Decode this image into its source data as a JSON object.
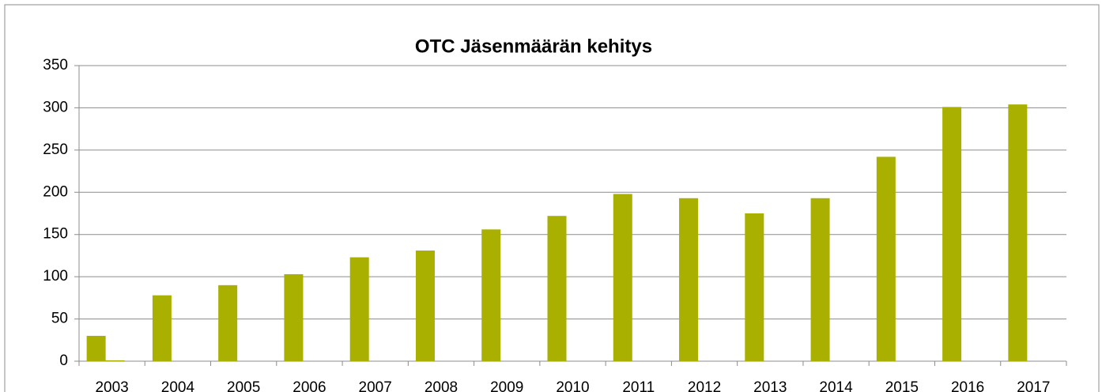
{
  "chart_data": {
    "type": "bar",
    "title": "OTC Jäsenmäärän kehitys",
    "categories": [
      "2003",
      "2004",
      "2005",
      "2006",
      "2007",
      "2008",
      "2009",
      "2010",
      "2011",
      "2012",
      "2013",
      "2014",
      "2015",
      "2016",
      "2017"
    ],
    "series": [
      {
        "color": "#a9b000",
        "values": [
          30,
          78,
          90,
          103,
          123,
          131,
          156,
          172,
          198,
          193,
          175,
          193,
          242,
          301,
          304
        ]
      },
      {
        "color": "#a9b000",
        "values": [
          1,
          0,
          0,
          0,
          0,
          0,
          0,
          0,
          0,
          0,
          0,
          0,
          0,
          0,
          0
        ]
      }
    ],
    "ylim": [
      0,
      350
    ],
    "yticks": [
      0,
      50,
      100,
      150,
      200,
      250,
      300,
      350
    ],
    "grid": true
  }
}
